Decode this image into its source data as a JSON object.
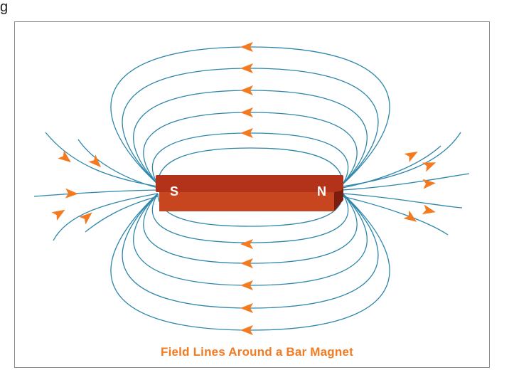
{
  "top_fragment": "g",
  "magnet": {
    "south_label": "S",
    "north_label": "N"
  },
  "caption": "Field Lines Around a Bar Magnet",
  "colors": {
    "field_line": "#2e86ab",
    "arrow": "#f47a20",
    "caption": "#f47a20",
    "magnet_top": "#b3331a",
    "magnet_front": "#c7451f",
    "magnet_edge": "#7a1e10",
    "frame_border": "#8a8a8a"
  }
}
